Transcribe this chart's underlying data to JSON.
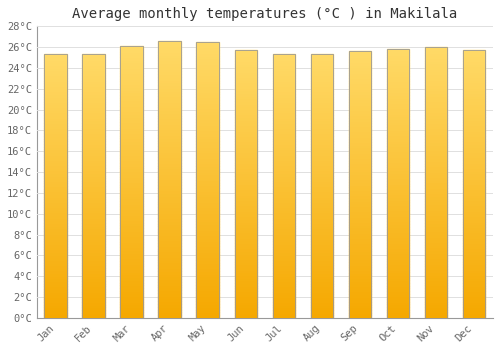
{
  "title": "Average monthly temperatures (°C ) in Makilala",
  "months": [
    "Jan",
    "Feb",
    "Mar",
    "Apr",
    "May",
    "Jun",
    "Jul",
    "Aug",
    "Sep",
    "Oct",
    "Nov",
    "Dec"
  ],
  "values": [
    25.3,
    25.3,
    26.1,
    26.6,
    26.5,
    25.7,
    25.3,
    25.3,
    25.6,
    25.8,
    26.0,
    25.7
  ],
  "bar_color_bottom": "#F5A800",
  "bar_color_top": "#FFD966",
  "bar_edge_color": "#999999",
  "ylim": [
    0,
    28
  ],
  "yticks": [
    0,
    2,
    4,
    6,
    8,
    10,
    12,
    14,
    16,
    18,
    20,
    22,
    24,
    26,
    28
  ],
  "ytick_labels": [
    "0°C",
    "2°C",
    "4°C",
    "6°C",
    "8°C",
    "10°C",
    "12°C",
    "14°C",
    "16°C",
    "18°C",
    "20°C",
    "22°C",
    "24°C",
    "26°C",
    "28°C"
  ],
  "bg_color": "#ffffff",
  "plot_bg_color": "#ffffff",
  "grid_color": "#e0e0e0",
  "title_fontsize": 10,
  "tick_fontsize": 7.5,
  "font_family": "monospace",
  "bar_width": 0.6,
  "gradient_steps": 100
}
